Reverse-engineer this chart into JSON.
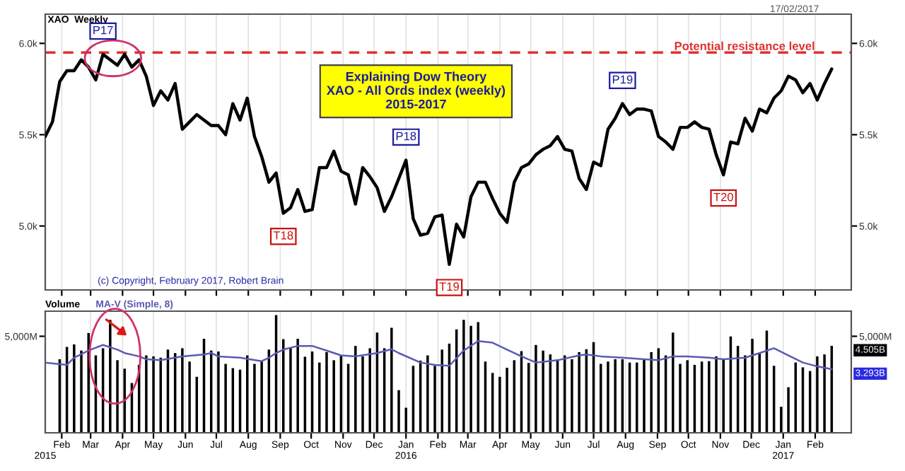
{
  "chart_data": [
    {
      "type": "line",
      "title": "Explaining Dow Theory\nXAO - All Ords index (weekly)\n2015-2017",
      "color": "#000000",
      "x": [
        "2015-01-16",
        "2015-01-23",
        "2015-01-30",
        "2015-02-06",
        "2015-02-13",
        "2015-02-20",
        "2015-02-27",
        "2015-03-06",
        "2015-03-13",
        "2015-03-20",
        "2015-03-27",
        "2015-04-03",
        "2015-04-10",
        "2015-04-17",
        "2015-04-24",
        "2015-05-01",
        "2015-05-08",
        "2015-05-15",
        "2015-05-22",
        "2015-05-29",
        "2015-06-05",
        "2015-06-12",
        "2015-06-19",
        "2015-06-26",
        "2015-07-03",
        "2015-07-10",
        "2015-07-17",
        "2015-07-24",
        "2015-07-31",
        "2015-08-07",
        "2015-08-14",
        "2015-08-21",
        "2015-08-28",
        "2015-09-04",
        "2015-09-11",
        "2015-09-18",
        "2015-09-25",
        "2015-10-02",
        "2015-10-09",
        "2015-10-16",
        "2015-10-23",
        "2015-10-30",
        "2015-11-06",
        "2015-11-13",
        "2015-11-20",
        "2015-11-27",
        "2015-12-04",
        "2015-12-11",
        "2015-12-18",
        "2015-12-25",
        "2016-01-01",
        "2016-01-08",
        "2016-01-15",
        "2016-01-22",
        "2016-01-29",
        "2016-02-05",
        "2016-02-12",
        "2016-02-19",
        "2016-02-26",
        "2016-03-04",
        "2016-03-11",
        "2016-03-18",
        "2016-03-25",
        "2016-04-01",
        "2016-04-08",
        "2016-04-15",
        "2016-04-22",
        "2016-04-29",
        "2016-05-06",
        "2016-05-13",
        "2016-05-20",
        "2016-05-27",
        "2016-06-03",
        "2016-06-10",
        "2016-06-17",
        "2016-06-24",
        "2016-07-01",
        "2016-07-08",
        "2016-07-15",
        "2016-07-22",
        "2016-07-29",
        "2016-08-05",
        "2016-08-12",
        "2016-08-19",
        "2016-08-26",
        "2016-09-02",
        "2016-09-09",
        "2016-09-16",
        "2016-09-23",
        "2016-09-30",
        "2016-10-07",
        "2016-10-14",
        "2016-10-21",
        "2016-10-28",
        "2016-11-04",
        "2016-11-11",
        "2016-11-18",
        "2016-11-25",
        "2016-12-02",
        "2016-12-09",
        "2016-12-16",
        "2016-12-23",
        "2016-12-30",
        "2017-01-06",
        "2017-01-13",
        "2017-01-20",
        "2017-01-27",
        "2017-02-03",
        "2017-02-10",
        "2017-02-17"
      ],
      "values": [
        5490,
        5570,
        5790,
        5850,
        5850,
        5910,
        5870,
        5800,
        5940,
        5910,
        5880,
        5940,
        5870,
        5910,
        5820,
        5660,
        5740,
        5690,
        5780,
        5530,
        5570,
        5610,
        5580,
        5550,
        5550,
        5500,
        5670,
        5580,
        5700,
        5490,
        5380,
        5240,
        5290,
        5070,
        5100,
        5200,
        5080,
        5090,
        5320,
        5320,
        5410,
        5300,
        5280,
        5120,
        5320,
        5270,
        5210,
        5080,
        5160,
        5260,
        5360,
        5040,
        4950,
        4960,
        5050,
        5060,
        4790,
        5010,
        4940,
        5160,
        5240,
        5240,
        5150,
        5070,
        5020,
        5240,
        5320,
        5340,
        5390,
        5420,
        5440,
        5490,
        5420,
        5410,
        5260,
        5200,
        5350,
        5330,
        5530,
        5590,
        5670,
        5610,
        5640,
        5640,
        5630,
        5490,
        5460,
        5420,
        5540,
        5540,
        5570,
        5540,
        5530,
        5390,
        5280,
        5460,
        5450,
        5590,
        5520,
        5640,
        5620,
        5700,
        5740,
        5820,
        5800,
        5730,
        5780,
        5690,
        5780,
        5860
      ],
      "xlim": [
        "2015-01-16",
        "2017-03-08"
      ],
      "ylim": [
        4650,
        6160
      ],
      "xticks": [
        {
          "value": "2015-02",
          "label": null
        },
        {
          "value": "2015-03",
          "label": null
        },
        {
          "value": "2015-04",
          "label": null
        },
        {
          "value": "2015-05",
          "label": null
        },
        {
          "value": "2015-06",
          "label": null
        },
        {
          "value": "2015-07",
          "label": null
        },
        {
          "value": "2015-08",
          "label": null
        },
        {
          "value": "2015-09",
          "label": null
        },
        {
          "value": "2015-10",
          "label": null
        },
        {
          "value": "2015-11",
          "label": null
        },
        {
          "value": "2015-12",
          "label": null
        },
        {
          "value": "2016-01",
          "label": null
        },
        {
          "value": "2016-02",
          "label": null
        },
        {
          "value": "2016-03",
          "label": null
        },
        {
          "value": "2016-04",
          "label": null
        },
        {
          "value": "2016-05",
          "label": null
        },
        {
          "value": "2016-06",
          "label": null
        },
        {
          "value": "2016-07",
          "label": null
        },
        {
          "value": "2016-08",
          "label": null
        },
        {
          "value": "2016-09",
          "label": null
        },
        {
          "value": "2016-10",
          "label": null
        },
        {
          "value": "2016-11",
          "label": null
        },
        {
          "value": "2016-12",
          "label": null
        },
        {
          "value": "2017-01",
          "label": null
        },
        {
          "value": "2017-02",
          "label": null
        }
      ],
      "yticks": [
        {
          "value": 5000,
          "label": "5.0k"
        },
        {
          "value": 5500,
          "label": "5.5k"
        },
        {
          "value": 6000,
          "label": "6.0k"
        }
      ],
      "tick_labels": "y",
      "grid": "x",
      "ref_lines": [
        {
          "axis": "y",
          "value": 5950,
          "label": "Potential resistance level",
          "color": "#e03030",
          "line_style": "dashed"
        }
      ],
      "annotations": [
        "XAO  Weekly",
        "17/02/2017",
        "(c) Copyright, February 2017, Robert Brain",
        {
          "text": "P17",
          "x": "2015-03-13",
          "y": 5940
        },
        {
          "text": "T18",
          "x": "2015-09-04",
          "y": 5070
        },
        {
          "text": "P18",
          "x": "2016-01-01",
          "y": 5360
        },
        {
          "text": "T19",
          "x": "2016-02-12",
          "y": 4790
        },
        {
          "text": "P19",
          "x": "2016-07-29",
          "y": 5670
        },
        {
          "text": "T20",
          "x": "2016-11-04",
          "y": 5280
        }
      ]
    },
    {
      "type": "bar",
      "title": "Volume",
      "series": [
        {
          "type": "bar",
          "color": "#000000",
          "x": [
            "2015-01-30",
            "2015-02-06",
            "2015-02-13",
            "2015-02-20",
            "2015-02-27",
            "2015-03-06",
            "2015-03-13",
            "2015-03-20",
            "2015-03-27",
            "2015-04-03",
            "2015-04-10",
            "2015-04-17",
            "2015-04-24",
            "2015-05-01",
            "2015-05-08",
            "2015-05-15",
            "2015-05-22",
            "2015-05-29",
            "2015-06-05",
            "2015-06-12",
            "2015-06-19",
            "2015-06-26",
            "2015-07-03",
            "2015-07-10",
            "2015-07-17",
            "2015-07-24",
            "2015-07-31",
            "2015-08-07",
            "2015-08-14",
            "2015-08-21",
            "2015-08-28",
            "2015-09-04",
            "2015-09-11",
            "2015-09-18",
            "2015-09-25",
            "2015-10-02",
            "2015-10-09",
            "2015-10-16",
            "2015-10-23",
            "2015-10-30",
            "2015-11-06",
            "2015-11-13",
            "2015-11-20",
            "2015-11-27",
            "2015-12-04",
            "2015-12-11",
            "2015-12-18",
            "2015-12-25",
            "2016-01-01",
            "2016-01-08",
            "2016-01-15",
            "2016-01-22",
            "2016-01-29",
            "2016-02-05",
            "2016-02-12",
            "2016-02-19",
            "2016-02-26",
            "2016-03-04",
            "2016-03-11",
            "2016-03-18",
            "2016-03-25",
            "2016-04-01",
            "2016-04-08",
            "2016-04-15",
            "2016-04-22",
            "2016-04-29",
            "2016-05-06",
            "2016-05-13",
            "2016-05-20",
            "2016-05-27",
            "2016-06-03",
            "2016-06-10",
            "2016-06-17",
            "2016-06-24",
            "2016-07-01",
            "2016-07-08",
            "2016-07-15",
            "2016-07-22",
            "2016-07-29",
            "2016-08-05",
            "2016-08-12",
            "2016-08-19",
            "2016-08-26",
            "2016-09-02",
            "2016-09-09",
            "2016-09-16",
            "2016-09-23",
            "2016-09-30",
            "2016-10-07",
            "2016-10-14",
            "2016-10-21",
            "2016-10-28",
            "2016-11-04",
            "2016-11-11",
            "2016-11-18",
            "2016-11-25",
            "2016-12-02",
            "2016-12-09",
            "2016-12-16",
            "2016-12-23",
            "2016-12-30",
            "2017-01-06",
            "2017-01-13",
            "2017-01-20",
            "2017-01-27",
            "2017-02-03",
            "2017-02-10",
            "2017-02-17"
          ],
          "values": [
            3810,
            4450,
            4580,
            4260,
            5170,
            4010,
            4380,
            5850,
            3760,
            3320,
            2580,
            3520,
            4010,
            3960,
            3890,
            4310,
            4130,
            4380,
            3690,
            2900,
            4870,
            4260,
            4210,
            3570,
            3350,
            3270,
            4010,
            3570,
            3690,
            4310,
            6100,
            4850,
            4430,
            4870,
            3940,
            4210,
            3640,
            4180,
            3760,
            4010,
            3570,
            4500,
            3960,
            4380,
            5190,
            4380,
            5440,
            2210,
            1300,
            3470,
            3740,
            4010,
            3470,
            4310,
            4620,
            5360,
            5850,
            5540,
            5730,
            3690,
            3100,
            2900,
            3370,
            3760,
            4230,
            3620,
            4550,
            4260,
            4060,
            3810,
            4010,
            3810,
            4180,
            4330,
            4700,
            3570,
            3690,
            3810,
            3810,
            3640,
            3640,
            3810,
            4180,
            4380,
            4010,
            5190,
            3570,
            3760,
            3520,
            3690,
            3710,
            3960,
            3810,
            4990,
            4500,
            4010,
            4870,
            4130,
            5290,
            3470,
            1350,
            2360,
            3640,
            3390,
            3200,
            3960,
            4060,
            4505
          ]
        },
        {
          "type": "line",
          "name": "MA-V (Simple, 8)",
          "color": "#5a5ab4",
          "x": [
            "2015-01-16",
            "2015-02-06",
            "2015-02-13",
            "2015-02-27",
            "2015-03-13",
            "2015-03-27",
            "2015-04-03",
            "2015-04-17",
            "2015-04-24",
            "2015-05-08",
            "2015-05-29",
            "2015-06-19",
            "2015-06-26",
            "2015-07-03",
            "2015-07-24",
            "2015-08-14",
            "2015-08-21",
            "2015-08-28",
            "2015-09-04",
            "2015-09-18",
            "2015-10-02",
            "2015-10-16",
            "2015-10-30",
            "2015-11-13",
            "2015-12-04",
            "2015-12-18",
            "2015-12-25",
            "2016-01-15",
            "2016-01-29",
            "2016-02-12",
            "2016-02-26",
            "2016-03-11",
            "2016-03-25",
            "2016-04-08",
            "2016-04-22",
            "2016-05-06",
            "2016-05-27",
            "2016-06-17",
            "2016-06-24",
            "2016-07-08",
            "2016-07-29",
            "2016-08-19",
            "2016-09-02",
            "2016-09-16",
            "2016-09-30",
            "2016-10-21",
            "2016-11-04",
            "2016-11-25",
            "2016-12-09",
            "2016-12-23",
            "2017-01-06",
            "2017-01-20",
            "2017-02-03",
            "2017-02-17"
          ],
          "values": [
            3640,
            3520,
            3890,
            4260,
            4550,
            4310,
            4130,
            3960,
            3810,
            3760,
            3960,
            4060,
            4130,
            3960,
            3890,
            3710,
            3890,
            4130,
            4310,
            4500,
            4500,
            4260,
            4010,
            3960,
            4130,
            4330,
            4130,
            3640,
            3520,
            3470,
            4260,
            4750,
            4670,
            4310,
            3960,
            3640,
            3760,
            4010,
            4060,
            3960,
            3890,
            3810,
            3760,
            3960,
            3960,
            3890,
            3810,
            3890,
            4130,
            4380,
            4010,
            3640,
            3440,
            3293
          ]
        }
      ],
      "xlim": [
        "2015-01-16",
        "2017-03-08"
      ],
      "ylim": [
        0,
        6300
      ],
      "x2lim": [
        "2015-01-16",
        "2017-03-08"
      ],
      "x2ticks": [
        {
          "value": "2015-01-16",
          "label": "2015"
        },
        {
          "value": "2016-01",
          "label": "2016"
        },
        {
          "value": "2017-01",
          "label": "2017"
        }
      ],
      "xticks": [
        {
          "value": "2015-02",
          "label": "Feb"
        },
        {
          "value": "2015-03",
          "label": "Mar"
        },
        {
          "value": "2015-04",
          "label": "Apr"
        },
        {
          "value": "2015-05",
          "label": "May"
        },
        {
          "value": "2015-06",
          "label": "Jun"
        },
        {
          "value": "2015-07",
          "label": "Jul"
        },
        {
          "value": "2015-08",
          "label": "Aug"
        },
        {
          "value": "2015-09",
          "label": "Sep"
        },
        {
          "value": "2015-10",
          "label": "Oct"
        },
        {
          "value": "2015-11",
          "label": "Nov"
        },
        {
          "value": "2015-12",
          "label": "Dec"
        },
        {
          "value": "2016-01",
          "label": "Jan"
        },
        {
          "value": "2016-02",
          "label": "Feb"
        },
        {
          "value": "2016-03",
          "label": "Mar"
        },
        {
          "value": "2016-04",
          "label": "Apr"
        },
        {
          "value": "2016-05",
          "label": "May"
        },
        {
          "value": "2016-06",
          "label": "Jun"
        },
        {
          "value": "2016-07",
          "label": "Jul"
        },
        {
          "value": "2016-08",
          "label": "Aug"
        },
        {
          "value": "2016-09",
          "label": "Sep"
        },
        {
          "value": "2016-10",
          "label": "Oct"
        },
        {
          "value": "2016-11",
          "label": "Nov"
        },
        {
          "value": "2016-12",
          "label": "Dec"
        },
        {
          "value": "2017-01",
          "label": "Jan"
        },
        {
          "value": "2017-02",
          "label": "Feb"
        }
      ],
      "yticks": [
        {
          "value": 5000,
          "label": "5,000M"
        }
      ],
      "grid": "x",
      "annotations": [
        {
          "text": "4.505B",
          "x": "2017-02-17",
          "y": 4505
        },
        {
          "text": "3.293B",
          "x": "2017-02-17",
          "y": 3293
        }
      ]
    }
  ]
}
